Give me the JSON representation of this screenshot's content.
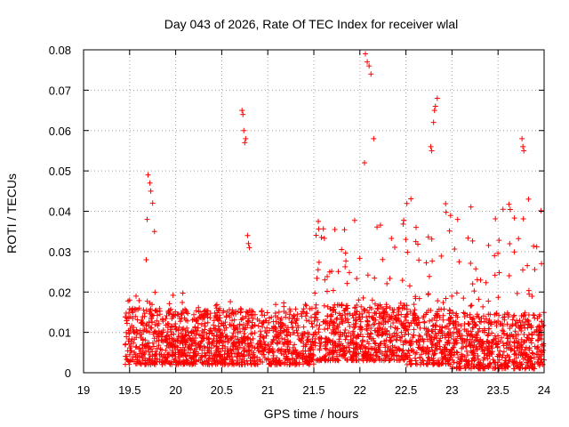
{
  "chart_data": {
    "type": "scatter",
    "title": "Day 043 of 2026, Rate Of TEC Index for receiver wlal",
    "xlabel": "GPS time / hours",
    "ylabel": "ROTI / TECUs",
    "xlim": [
      19,
      24
    ],
    "ylim": [
      0,
      0.08
    ],
    "x_ticks": [
      19,
      19.5,
      20,
      20.5,
      21,
      21.5,
      22,
      22.5,
      23,
      23.5,
      24
    ],
    "x_tick_labels": [
      "19",
      "19.5",
      "20",
      "20.5",
      "21",
      "21.5",
      "22",
      "22.5",
      "23",
      "23.5",
      "24"
    ],
    "y_ticks": [
      0,
      0.01,
      0.02,
      0.03,
      0.04,
      0.05,
      0.06,
      0.07,
      0.08
    ],
    "y_tick_labels": [
      "0",
      "0.01",
      "0.02",
      "0.03",
      "0.04",
      "0.05",
      "0.06",
      "0.07",
      "0.08"
    ],
    "grid": true,
    "marker": "+",
    "series": [
      {
        "name": "ROTI",
        "color": "#ff0000",
        "notable_points": [
          {
            "x": 19.68,
            "y": 0.028
          },
          {
            "x": 19.69,
            "y": 0.038
          },
          {
            "x": 19.7,
            "y": 0.049
          },
          {
            "x": 19.72,
            "y": 0.047
          },
          {
            "x": 19.73,
            "y": 0.045
          },
          {
            "x": 19.75,
            "y": 0.042
          },
          {
            "x": 19.77,
            "y": 0.035
          },
          {
            "x": 20.72,
            "y": 0.065
          },
          {
            "x": 20.73,
            "y": 0.064
          },
          {
            "x": 20.74,
            "y": 0.06
          },
          {
            "x": 20.75,
            "y": 0.057
          },
          {
            "x": 20.76,
            "y": 0.058
          },
          {
            "x": 20.78,
            "y": 0.034
          },
          {
            "x": 20.79,
            "y": 0.032
          },
          {
            "x": 20.8,
            "y": 0.031
          },
          {
            "x": 22.05,
            "y": 0.052
          },
          {
            "x": 22.06,
            "y": 0.079
          },
          {
            "x": 22.08,
            "y": 0.077
          },
          {
            "x": 22.1,
            "y": 0.076
          },
          {
            "x": 22.12,
            "y": 0.074
          },
          {
            "x": 22.15,
            "y": 0.058
          },
          {
            "x": 22.77,
            "y": 0.056
          },
          {
            "x": 22.78,
            "y": 0.055
          },
          {
            "x": 22.8,
            "y": 0.062
          },
          {
            "x": 22.81,
            "y": 0.065
          },
          {
            "x": 22.82,
            "y": 0.066
          },
          {
            "x": 22.84,
            "y": 0.068
          },
          {
            "x": 23.76,
            "y": 0.058
          },
          {
            "x": 23.77,
            "y": 0.056
          },
          {
            "x": 23.78,
            "y": 0.055
          }
        ],
        "dense_bands": [
          {
            "x_from": 19.45,
            "x_to": 20.3,
            "y_min": 0.002,
            "y_max": 0.02
          },
          {
            "x_from": 20.3,
            "x_to": 21.5,
            "y_min": 0.002,
            "y_max": 0.018
          },
          {
            "x_from": 21.5,
            "x_to": 22.5,
            "y_min": 0.003,
            "y_max": 0.038
          },
          {
            "x_from": 22.5,
            "x_to": 23.0,
            "y_min": 0.002,
            "y_max": 0.044
          },
          {
            "x_from": 23.0,
            "x_to": 24.0,
            "y_min": 0.001,
            "y_max": 0.044
          }
        ]
      }
    ]
  }
}
